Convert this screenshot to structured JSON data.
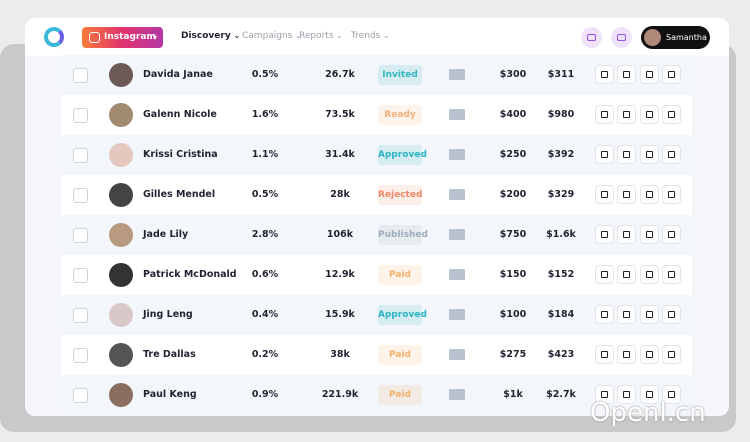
{
  "header": {
    "platform": "Instagram",
    "menu": [
      "Discovery",
      "Campaigns",
      "Reports",
      "Trends"
    ],
    "user": "Samantha"
  },
  "table": {
    "rows": [
      {
        "name": "Davida Janae",
        "engagement": "0.5%",
        "followers": "26.7k",
        "status": "Invited",
        "status_color": "#35b6c4",
        "price": "$300",
        "total": "$311"
      },
      {
        "name": "Galenn Nicole",
        "engagement": "1.6%",
        "followers": "73.5k",
        "status": "Ready",
        "status_color": "#f3b07a",
        "price": "$400",
        "total": "$980"
      },
      {
        "name": "Krissi Cristina",
        "engagement": "1.1%",
        "followers": "31.4k",
        "status": "Approved",
        "status_color": "#2cb5c2",
        "price": "$250",
        "total": "$392"
      },
      {
        "name": "Gilles Mendel",
        "engagement": "0.5%",
        "followers": "28k",
        "status": "Rejected",
        "status_color": "#ee8a6c",
        "price": "$200",
        "total": "$329"
      },
      {
        "name": "Jade Lily",
        "engagement": "2.8%",
        "followers": "106k",
        "status": "Published",
        "status_color": "#9fadbb",
        "price": "$750",
        "total": "$1.6k"
      },
      {
        "name": "Patrick McDonald",
        "engagement": "0.6%",
        "followers": "12.9k",
        "status": "Paid",
        "status_color": "#f3b06a",
        "price": "$150",
        "total": "$152"
      },
      {
        "name": "Jing Leng",
        "engagement": "0.4%",
        "followers": "15.9k",
        "status": "Approved",
        "status_color": "#2cb5c2",
        "price": "$100",
        "total": "$184"
      },
      {
        "name": "Tre Dallas",
        "engagement": "0.2%",
        "followers": "38k",
        "status": "Paid",
        "status_color": "#f3b06a",
        "price": "$275",
        "total": "$423"
      },
      {
        "name": "Paul Keng",
        "engagement": "0.9%",
        "followers": "221.9k",
        "status": "Paid",
        "status_color": "#f3b06a",
        "price": "$1k",
        "total": "$2.7k"
      }
    ]
  },
  "watermark": "Openl.cn"
}
